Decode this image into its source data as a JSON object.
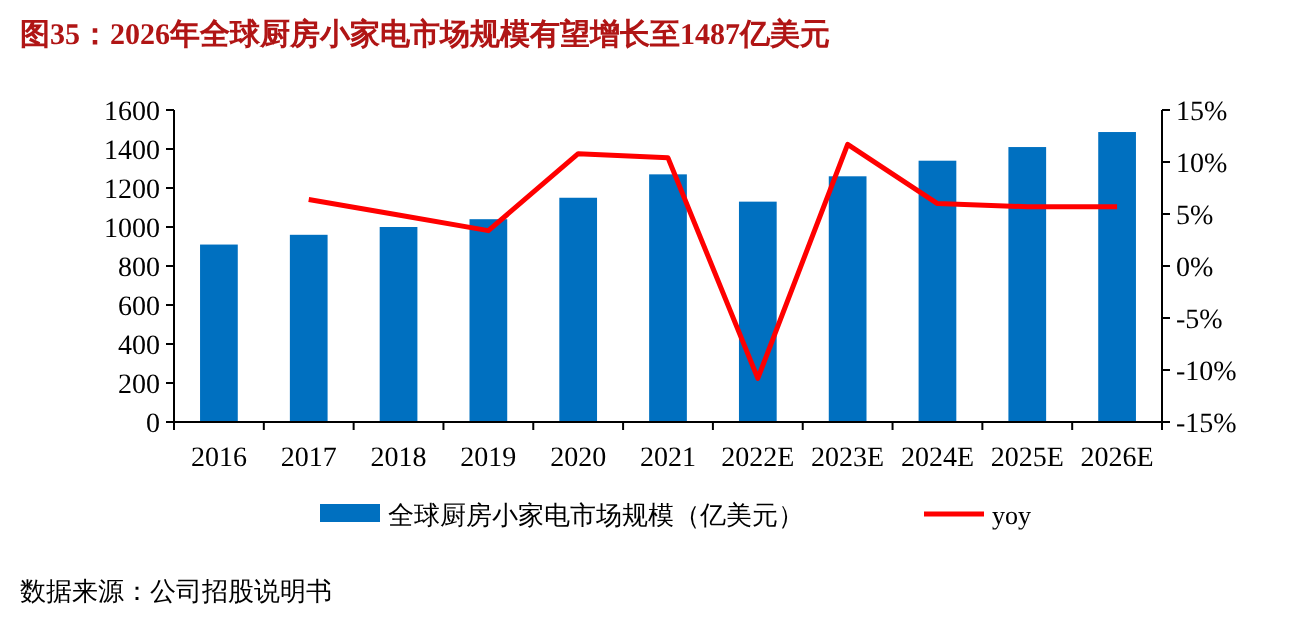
{
  "chart_data": {
    "type": "bar",
    "title": "图35：2026年全球厨房小家电市场规模有望增长至1487亿美元",
    "categories": [
      "2016",
      "2017",
      "2018",
      "2019",
      "2020",
      "2021",
      "2022E",
      "2023E",
      "2024E",
      "2025E",
      "2026E"
    ],
    "series": [
      {
        "name": "全球厨房小家电市场规模（亿美元）",
        "color": "#0070c0",
        "values": [
          910,
          960,
          1000,
          1040,
          1150,
          1270,
          1130,
          1260,
          1340,
          1410,
          1487
        ]
      },
      {
        "name": "yoy",
        "type": "line",
        "axis": "y2",
        "color": "#ff0000",
        "values": [
          null,
          6.4,
          4.9,
          3.4,
          10.8,
          10.4,
          -10.8,
          11.7,
          6.0,
          5.7,
          5.7
        ]
      }
    ],
    "ylim": [
      0,
      1600
    ],
    "yticks": [
      0,
      200,
      400,
      600,
      800,
      1000,
      1200,
      1400,
      1600
    ],
    "y2lim": [
      -15,
      15
    ],
    "y2ticks": [
      {
        "value": -15,
        "label": "-15%"
      },
      {
        "value": -10,
        "label": "-10%"
      },
      {
        "value": -5,
        "label": "-5%"
      },
      {
        "value": 0,
        "label": "0%"
      },
      {
        "value": 5,
        "label": "5%"
      },
      {
        "value": 10,
        "label": "10%"
      },
      {
        "value": 15,
        "label": "15%"
      }
    ],
    "grid": false,
    "legend": "bottom",
    "marker": "none",
    "annotations": [
      "数据来源：公司招股说明书"
    ]
  }
}
